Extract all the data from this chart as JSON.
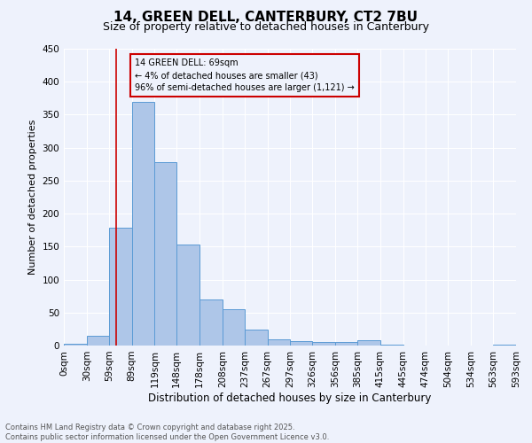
{
  "title": "14, GREEN DELL, CANTERBURY, CT2 7BU",
  "subtitle": "Size of property relative to detached houses in Canterbury",
  "xlabel": "Distribution of detached houses by size in Canterbury",
  "ylabel": "Number of detached properties",
  "bar_edges": [
    0,
    30,
    59,
    89,
    119,
    148,
    178,
    208,
    237,
    267,
    297,
    326,
    356,
    385,
    415,
    445,
    474,
    504,
    534,
    563,
    593
  ],
  "bar_heights": [
    3,
    15,
    178,
    370,
    278,
    153,
    70,
    55,
    24,
    10,
    7,
    6,
    5,
    8,
    1,
    0,
    0,
    0,
    0,
    2
  ],
  "bar_color": "#aec6e8",
  "bar_edge_color": "#5b9bd5",
  "ylim": [
    0,
    450
  ],
  "yticks": [
    0,
    50,
    100,
    150,
    200,
    250,
    300,
    350,
    400,
    450
  ],
  "vline_x": 69,
  "vline_color": "#cc0000",
  "annotation_text": "14 GREEN DELL: 69sqm\n← 4% of detached houses are smaller (43)\n96% of semi-detached houses are larger (1,121) →",
  "annotation_box_color": "#cc0000",
  "bg_color": "#eef2fc",
  "grid_color": "#ffffff",
  "footer_line1": "Contains HM Land Registry data © Crown copyright and database right 2025.",
  "footer_line2": "Contains public sector information licensed under the Open Government Licence v3.0.",
  "tick_labels": [
    "0sqm",
    "30sqm",
    "59sqm",
    "89sqm",
    "119sqm",
    "148sqm",
    "178sqm",
    "208sqm",
    "237sqm",
    "267sqm",
    "297sqm",
    "326sqm",
    "356sqm",
    "385sqm",
    "415sqm",
    "445sqm",
    "474sqm",
    "504sqm",
    "534sqm",
    "563sqm",
    "593sqm"
  ]
}
